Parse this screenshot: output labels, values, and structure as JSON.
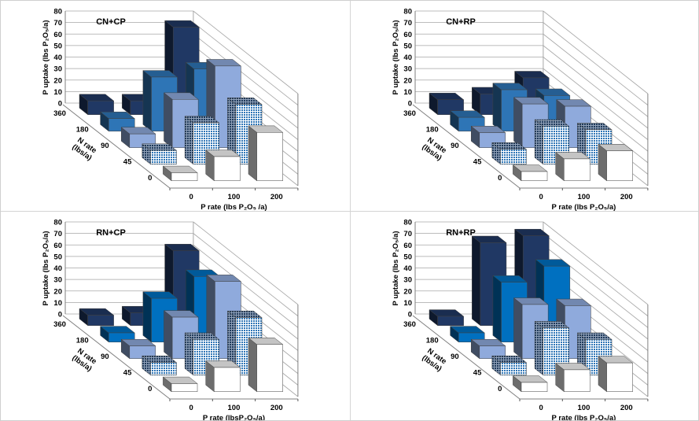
{
  "chart_data": [
    {
      "type": "bar3d",
      "title": "CN+CP",
      "ylabel": "P uptake (lbs P₂O₅/a)",
      "xlabel": "P rate (lbs P₂O₅ /a)",
      "zlabel": [
        "N rate",
        "(lbs/a)"
      ],
      "ylim": [
        0,
        80
      ],
      "yticks": [
        "0",
        "10",
        "20",
        "30",
        "40",
        "50",
        "60",
        "70",
        "80"
      ],
      "x_categories": [
        "0",
        "100",
        "200"
      ],
      "series": [
        {
          "name": "360",
          "values": [
            12,
            12,
            76
          ]
        },
        {
          "name": "180",
          "values": [
            11,
            47,
            54
          ]
        },
        {
          "name": "90",
          "values": [
            12,
            42,
            71
          ]
        },
        {
          "name": "45",
          "values": [
            12,
            36,
            52
          ]
        },
        {
          "name": "0",
          "values": [
            7,
            21,
            42
          ]
        }
      ],
      "colors": [
        "#203864",
        "#2e75b6",
        "#8faadc",
        "checker-blue",
        "#ffffff"
      ],
      "grid": true
    },
    {
      "type": "bar3d",
      "title": "CN+RP",
      "ylabel": "P uptake (lbs P₂O₅/a)",
      "xlabel": "P rate (lbs P₂O₅/a)",
      "zlabel": [
        "N rate",
        "(lbs/a)"
      ],
      "ylim": [
        0,
        80
      ],
      "yticks": [
        "0",
        "10",
        "20",
        "30",
        "40",
        "50",
        "60",
        "70",
        "80"
      ],
      "x_categories": [
        "0",
        "100",
        "200"
      ],
      "series": [
        {
          "name": "360",
          "values": [
            13,
            18,
            32
          ]
        },
        {
          "name": "180",
          "values": [
            12,
            36,
            31
          ]
        },
        {
          "name": "90",
          "values": [
            13,
            38,
            36
          ]
        },
        {
          "name": "45",
          "values": [
            13,
            33,
            30
          ]
        },
        {
          "name": "0",
          "values": [
            8,
            19,
            26
          ]
        }
      ],
      "colors": [
        "#203864",
        "#2e75b6",
        "#8faadc",
        "checker-blue",
        "#ffffff"
      ],
      "grid": true
    },
    {
      "type": "bar3d",
      "title": "RN+CP",
      "ylabel": "P uptake (lbs P₂O₅/a)",
      "xlabel": "P rate (lbsP₂O₅/a)",
      "zlabel": [
        "N rate",
        "(lbs/a)"
      ],
      "ylim": [
        0,
        80
      ],
      "yticks": [
        "0",
        "10",
        "20",
        "30",
        "40",
        "50",
        "60",
        "70",
        "80"
      ],
      "x_categories": [
        "0",
        "100",
        "200"
      ],
      "series": [
        {
          "name": "360",
          "values": [
            9,
            11,
            65
          ]
        },
        {
          "name": "180",
          "values": [
            8,
            38,
            57
          ]
        },
        {
          "name": "90",
          "values": [
            11,
            36,
            67
          ]
        },
        {
          "name": "45",
          "values": [
            11,
            31,
            50
          ]
        },
        {
          "name": "0",
          "values": [
            7,
            21,
            41
          ]
        }
      ],
      "colors": [
        "#203864",
        "#0070c0",
        "#8faadc",
        "checker-blue",
        "#ffffff"
      ],
      "grid": true
    },
    {
      "type": "bar3d",
      "title": "RN+RP",
      "ylabel": "P uptake (lbs P₂O₅/a)",
      "xlabel": "P rate (lbs P₂O₅/a)",
      "zlabel": [
        "N rate",
        "(lbs/a)"
      ],
      "ylim": [
        0,
        80
      ],
      "yticks": [
        "0",
        "10",
        "20",
        "30",
        "40",
        "50",
        "60",
        "70",
        "80"
      ],
      "x_categories": [
        "0",
        "100",
        "200"
      ],
      "series": [
        {
          "name": "360",
          "values": [
            8,
            72,
            78
          ]
        },
        {
          "name": "180",
          "values": [
            8,
            52,
            66
          ]
        },
        {
          "name": "90",
          "values": [
            11,
            47,
            46
          ]
        },
        {
          "name": "45",
          "values": [
            11,
            41,
            31
          ]
        },
        {
          "name": "0",
          "values": [
            8,
            19,
            25
          ]
        }
      ],
      "colors": [
        "#203864",
        "#0070c0",
        "#8faadc",
        "checker-blue",
        "#ffffff"
      ],
      "grid": true
    }
  ]
}
